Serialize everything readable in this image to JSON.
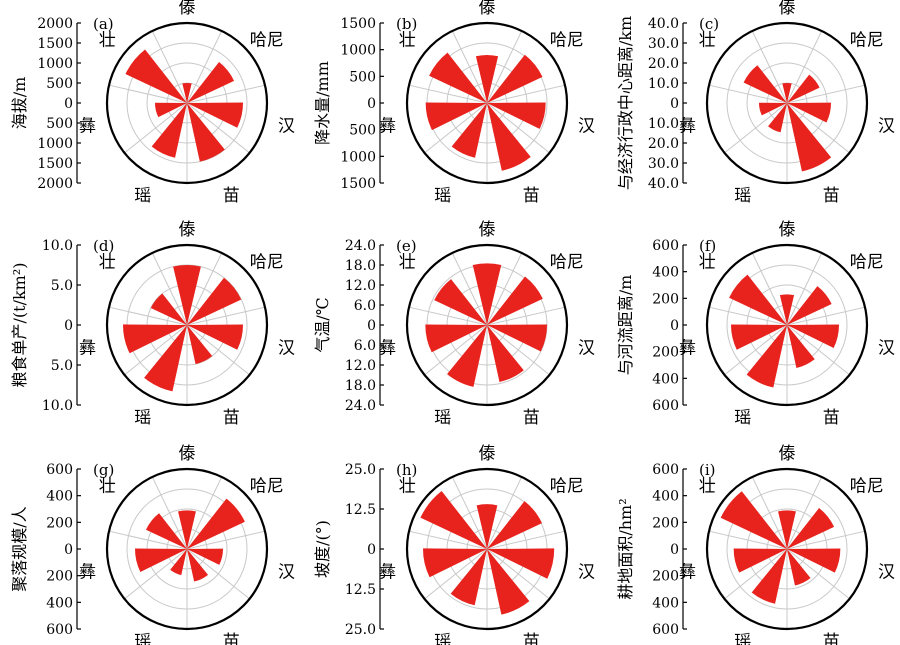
{
  "figure": {
    "ethnic_labels": [
      "傣",
      "哈尼",
      "汉",
      "苗",
      "瑶",
      "彝",
      "壮"
    ],
    "colors": {
      "petal": "#e8231e",
      "ring": "#c8c8c8",
      "spoke": "#c8c8c8",
      "outline": "#000000"
    }
  },
  "chart_data": [
    {
      "panel": "(a)",
      "type": "rose",
      "ylabel": "海拔/m",
      "ticks": [
        "2000",
        "1500",
        "1000",
        "500",
        "0",
        "500",
        "1000",
        "1500",
        "2000"
      ],
      "categories": [
        "傣",
        "哈尼",
        "汉",
        "苗",
        "瑶",
        "彝",
        "壮"
      ],
      "values": [
        500,
        1300,
        1400,
        1500,
        1400,
        800,
        1700
      ],
      "ylim": [
        0,
        2000
      ]
    },
    {
      "panel": "(b)",
      "type": "rose",
      "ylabel": "降水量/mm",
      "ticks": [
        "1500",
        "1000",
        "500",
        "0",
        "500",
        "1000",
        "1500"
      ],
      "categories": [
        "傣",
        "哈尼",
        "汉",
        "苗",
        "瑶",
        "彝",
        "壮"
      ],
      "values": [
        900,
        1150,
        1100,
        1300,
        1050,
        1150,
        1200
      ],
      "ylim": [
        0,
        1500
      ]
    },
    {
      "panel": "(c)",
      "type": "rose",
      "ylabel": "与经济行政中心距离/km",
      "ticks": [
        "40.0",
        "30.0",
        "20.0",
        "10.0",
        "0",
        "10.0",
        "20.0",
        "30.0",
        "40.0"
      ],
      "categories": [
        "傣",
        "哈尼",
        "汉",
        "苗",
        "瑶",
        "彝",
        "壮"
      ],
      "values": [
        10,
        18,
        22,
        35,
        15,
        14,
        24
      ],
      "ylim": [
        0,
        40
      ]
    },
    {
      "panel": "(d)",
      "type": "rose",
      "ylabel": "粮食单产/(t/km²)",
      "ticks": [
        "10.0",
        "5.0",
        "0",
        "5.0",
        "10.0"
      ],
      "categories": [
        "傣",
        "哈尼",
        "汉",
        "苗",
        "瑶",
        "彝",
        "壮"
      ],
      "values": [
        7.5,
        7.5,
        7.0,
        5.0,
        8.5,
        8.0,
        5.0
      ],
      "ylim": [
        0,
        10
      ]
    },
    {
      "panel": "(e)",
      "type": "rose",
      "ylabel": "气温/℃",
      "ticks": [
        "24.0",
        "18.0",
        "12.0",
        "6.0",
        "0",
        "6.0",
        "12.0",
        "18.0",
        "24.0"
      ],
      "categories": [
        "傣",
        "哈尼",
        "汉",
        "苗",
        "瑶",
        "彝",
        "壮"
      ],
      "values": [
        18.5,
        18.5,
        18.0,
        17.5,
        19.0,
        18.5,
        17.5
      ],
      "ylim": [
        0,
        24
      ]
    },
    {
      "panel": "(f)",
      "type": "rose",
      "ylabel": "与河流距离/m",
      "ticks": [
        "600",
        "400",
        "200",
        "0",
        "200",
        "400",
        "600"
      ],
      "categories": [
        "傣",
        "哈尼",
        "汉",
        "苗",
        "瑶",
        "彝",
        "壮"
      ],
      "values": [
        230,
        370,
        390,
        330,
        480,
        420,
        480
      ],
      "ylim": [
        0,
        600
      ]
    },
    {
      "panel": "(g)",
      "type": "rose",
      "ylabel": "聚落规模/人",
      "ticks": [
        "600",
        "400",
        "200",
        "0",
        "200",
        "400",
        "600"
      ],
      "categories": [
        "傣",
        "哈尼",
        "汉",
        "苗",
        "瑶",
        "彝",
        "壮"
      ],
      "values": [
        290,
        480,
        270,
        250,
        200,
        390,
        340
      ],
      "ylim": [
        0,
        600
      ]
    },
    {
      "panel": "(h)",
      "type": "rose",
      "ylabel": "坡度/(°)",
      "ticks": [
        "25.0",
        "12.5",
        "0",
        "12.5",
        "25.0"
      ],
      "categories": [
        "傣",
        "哈尼",
        "汉",
        "苗",
        "瑶",
        "彝",
        "壮"
      ],
      "values": [
        14,
        19,
        21,
        21,
        18,
        20,
        23
      ],
      "ylim": [
        0,
        25
      ]
    },
    {
      "panel": "(i)",
      "type": "rose",
      "ylabel": "耕地面积/hm²",
      "ticks": [
        "600",
        "400",
        "200",
        "0",
        "200",
        "400",
        "600"
      ],
      "categories": [
        "傣",
        "哈尼",
        "汉",
        "苗",
        "瑶",
        "彝",
        "壮"
      ],
      "values": [
        290,
        390,
        400,
        280,
        420,
        400,
        550
      ],
      "ylim": [
        0,
        600
      ]
    }
  ]
}
